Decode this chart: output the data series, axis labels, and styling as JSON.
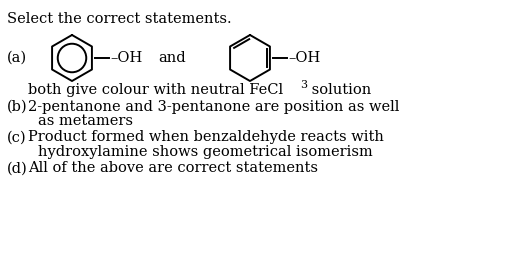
{
  "title": "Select the correct statements.",
  "background_color": "#ffffff",
  "text_color": "#000000",
  "fs": 10.5,
  "label_a": "(a)",
  "label_b": "(b)",
  "label_c": "(c)",
  "label_d": "(d)",
  "text_a_sub1": "both give colour with neutral FeCl",
  "text_a_sub2": "3",
  "text_a_sub3": " solution",
  "text_b1": "2-pentanone and 3-pentanone are position as well",
  "text_b2": "as metamers",
  "text_c1": "Product formed when benzaldehyde reacts with",
  "text_c2": "hydroxylamine shows geometrical isomerism",
  "text_d1": "All of the above are correct statements",
  "oh_text": "–OH",
  "and_text": "and"
}
